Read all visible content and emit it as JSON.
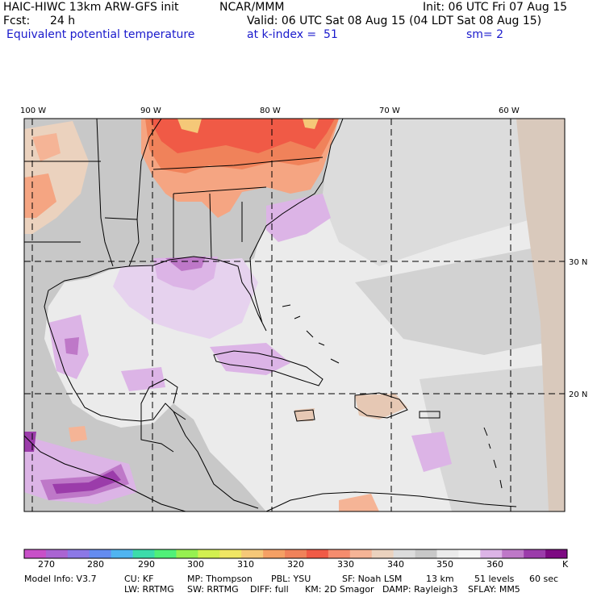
{
  "header": {
    "model_title": "HAIC-HIWC 13km ARW-GFS init",
    "org": "NCAR/MMM",
    "init": "Init: 06 UTC Fri 07 Aug 15",
    "fcst_label": "Fcst:",
    "fcst_value": "24 h",
    "valid": "Valid: 06 UTC Sat 08 Aug 15 (04 LDT Sat 08 Aug 15)",
    "field": "Equivalent potential temperature",
    "level": "at k-index =  51",
    "smooth": "sm= 2"
  },
  "map": {
    "lon_labels": [
      "100 W",
      "90 W",
      "80 W",
      "70 W",
      "60 W"
    ],
    "lat_labels": [
      "30 N",
      "20 N"
    ],
    "colors": {
      "land_bg": "#c8c8c8",
      "ocean_bg": "#ebebeb",
      "warm": "#f05a46",
      "orange": "#f0825a",
      "salmon": "#f5a582",
      "tan": "#e6c8b4",
      "lavender": "#dcb4e6",
      "purple": "#be78c8",
      "dark_purple": "#8c32a0"
    }
  },
  "colorbar": {
    "colors": [
      "#c850c8",
      "#aa64d2",
      "#8c78e6",
      "#648cf0",
      "#50b4f0",
      "#3cdcaa",
      "#50f078",
      "#96f050",
      "#d2f050",
      "#f0e664",
      "#f5c878",
      "#f5a064",
      "#f0825a",
      "#f05a46",
      "#f58c6e",
      "#f5b496",
      "#ebd2be",
      "#dcdcdc",
      "#c8c8c8",
      "#ebebeb",
      "#f5f5f5",
      "#dcb4e6",
      "#be78c8",
      "#9b3caa",
      "#7d0a82"
    ],
    "labels": [
      "270",
      "280",
      "290",
      "300",
      "310",
      "320",
      "330",
      "340",
      "350",
      "360"
    ],
    "unit": "K"
  },
  "footer": {
    "line1": [
      "Model Info: V3.7",
      "CU: KF",
      "MP: Thompson",
      "PBL: YSU",
      "SF: Noah LSM",
      "13 km",
      "51 levels",
      "60 sec"
    ],
    "line2": [
      "LW: RRTMG",
      "SW: RRTMG",
      "DIFF: full",
      "KM: 2D Smagor",
      "DAMP: Rayleigh3",
      "SFLAY: MM5"
    ]
  }
}
